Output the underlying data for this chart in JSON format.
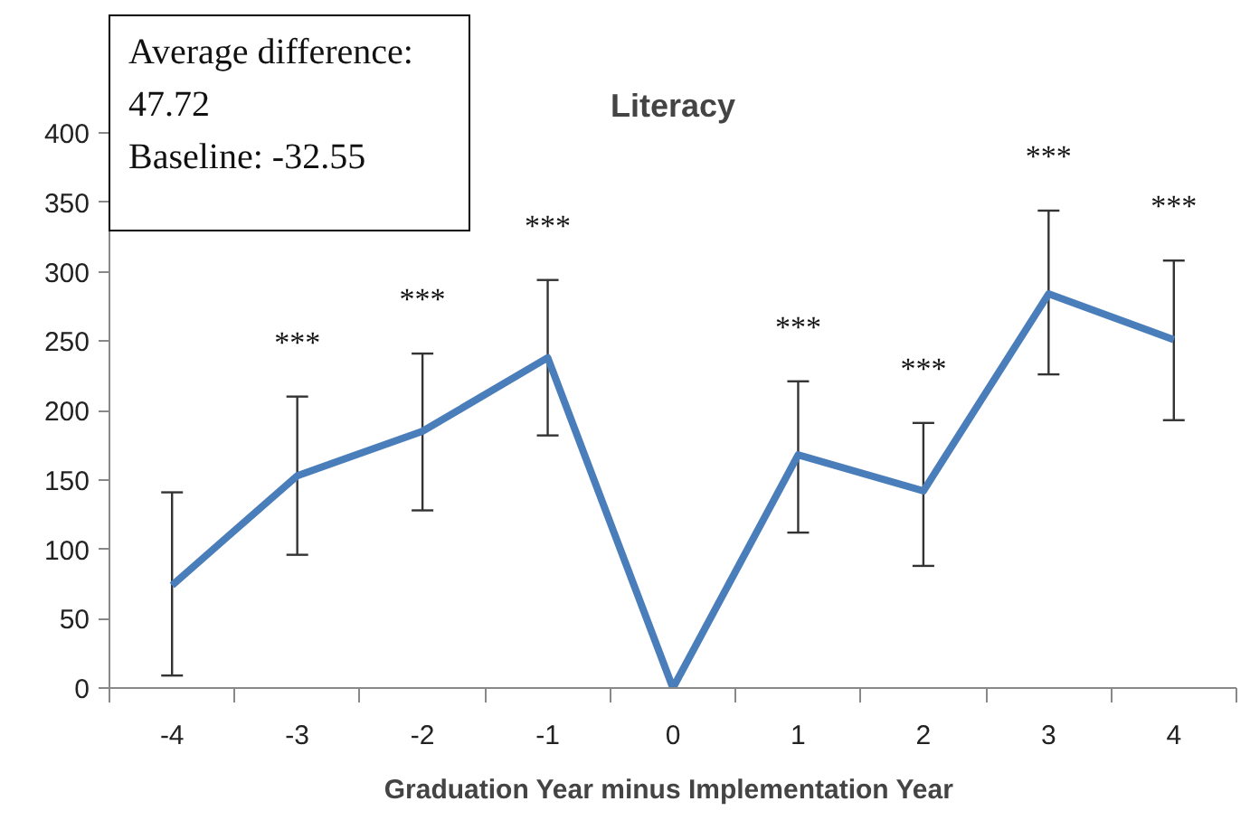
{
  "chart_data": {
    "type": "line",
    "title": "Literacy",
    "xlabel": "Graduation  Year minus Implementation Year",
    "categories": [
      "-4",
      "-3",
      "-2",
      "-1",
      "0",
      "1",
      "2",
      "3",
      "4"
    ],
    "series": [
      {
        "color": "#4a7ebb",
        "values": [
          74,
          153,
          185,
          238,
          0,
          168,
          142,
          284,
          251
        ],
        "errors": [
          [
            9,
            141
          ],
          [
            96,
            210
          ],
          [
            128,
            241
          ],
          [
            182,
            294
          ],
          null,
          [
            112,
            221
          ],
          [
            88,
            191
          ],
          [
            226,
            344
          ],
          [
            193,
            308
          ]
        ]
      }
    ],
    "ylim": [
      0,
      400
    ],
    "yticks": [
      0,
      50,
      100,
      150,
      200,
      250,
      300,
      350,
      400
    ],
    "grid": false,
    "marker": "none",
    "line_style": "solid",
    "annotations": [
      "Average difference:\n47.72\nBaseline:  -32.55",
      {
        "text": "***",
        "x": "-3",
        "y": 210
      },
      {
        "text": "***",
        "x": "-2",
        "y": 241
      },
      {
        "text": "***",
        "x": "-1",
        "y": 294
      },
      {
        "text": "***",
        "x": "1",
        "y": 221
      },
      {
        "text": "***",
        "x": "2",
        "y": 191
      },
      {
        "text": "***",
        "x": "3",
        "y": 344
      },
      {
        "text": "***",
        "x": "4",
        "y": 308
      }
    ]
  }
}
